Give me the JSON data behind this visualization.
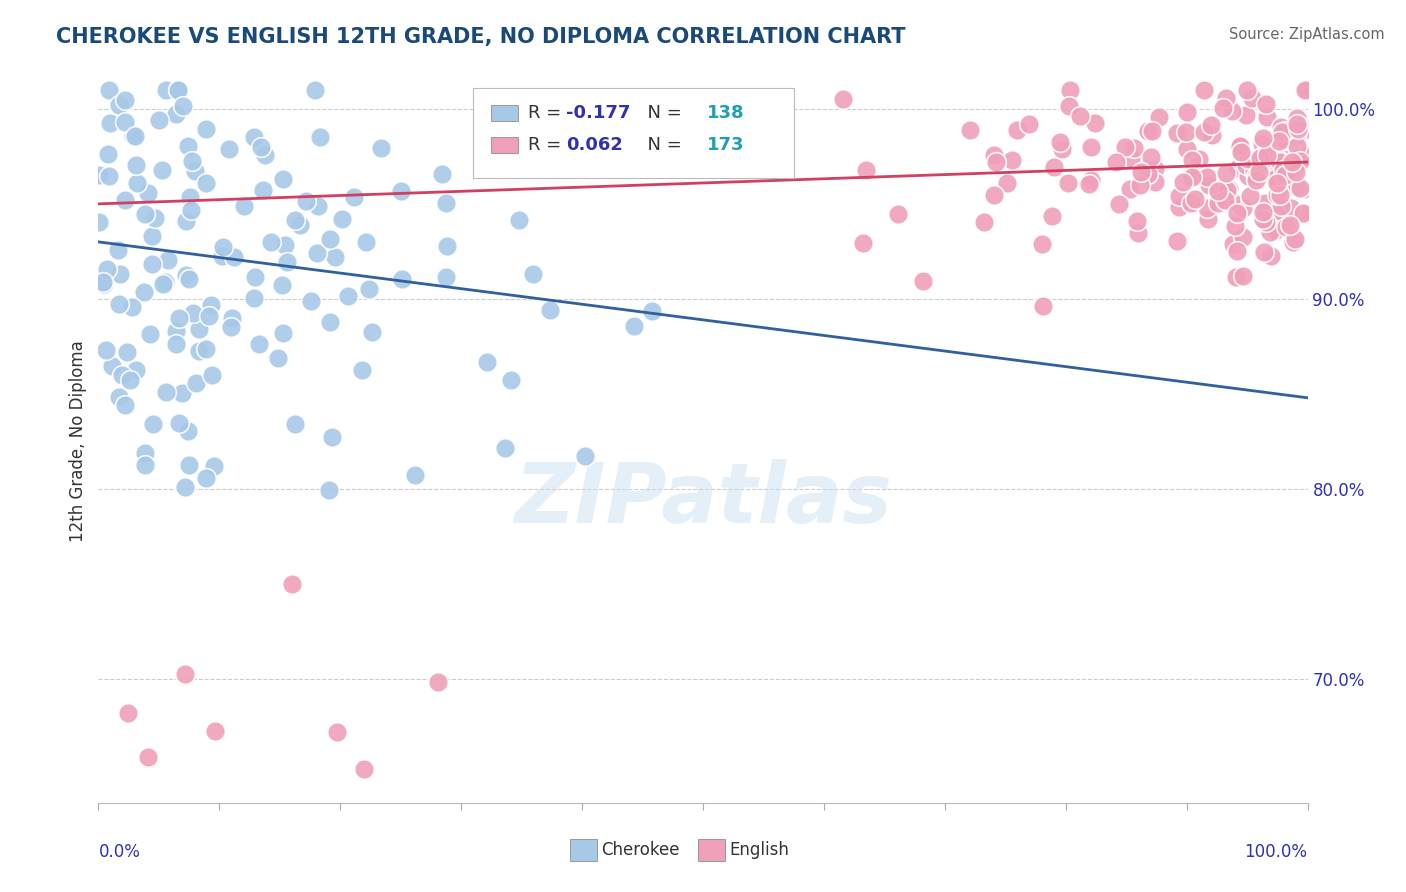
{
  "title": "CHEROKEE VS ENGLISH 12TH GRADE, NO DIPLOMA CORRELATION CHART",
  "source": "Source: ZipAtlas.com",
  "ylabel": "12th Grade, No Diploma",
  "xlim": [
    0.0,
    1.0
  ],
  "ylim": [
    0.635,
    1.015
  ],
  "yticks": [
    0.7,
    0.8,
    0.9,
    1.0
  ],
  "ytick_labels": [
    "70.0%",
    "80.0%",
    "90.0%",
    "100.0%"
  ],
  "cherokee_color": "#a8c8e8",
  "cherokee_line_color": "#3060a0",
  "english_color": "#f0a0b8",
  "english_line_color": "#d04060",
  "title_color": "#1a4a7a",
  "source_color": "#666666",
  "watermark": "ZIPatlas",
  "r_cherokee": -0.177,
  "r_english": 0.062,
  "n_cherokee": 138,
  "n_english": 173,
  "cherokee_line_x": [
    0.0,
    1.0
  ],
  "cherokee_line_y": [
    0.93,
    0.848
  ],
  "english_line_x": [
    0.0,
    1.0
  ],
  "english_line_y": [
    0.95,
    0.972
  ],
  "r_value_color": "#3030b0",
  "n_value_color": "#20a0b0",
  "legend_box_color": "#cccccc",
  "cherokee_legend_color": "#a8c8e8",
  "english_legend_color": "#f0a0b8"
}
